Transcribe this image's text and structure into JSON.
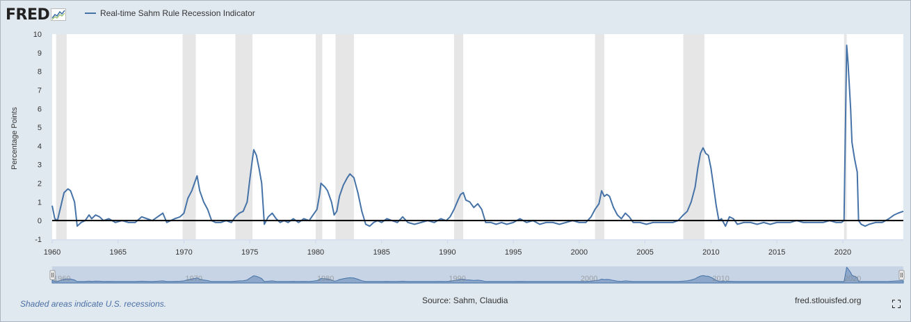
{
  "header": {
    "logo_text": "FRED",
    "logo_icon": "fred-chart-icon",
    "legend_label": "Real-time Sahm Rule Recession Indicator"
  },
  "footer": {
    "note": "Shaded areas indicate U.S. recessions.",
    "source": "Source: Sahm, Claudia",
    "url": "fred.stlouisfed.org",
    "fullscreen_icon": "fullscreen-icon"
  },
  "colors": {
    "series": "#4572a7",
    "recession_shade": "#e6e6e6",
    "background": "#e1e9f0",
    "plot_background": "#ffffff",
    "zero_line": "#000000",
    "navigator_fill": "#b2c3dc"
  },
  "chart_data": {
    "type": "line",
    "title": "Real-time Sahm Rule Recession Indicator",
    "xlabel": "",
    "ylabel": "Percentage Points",
    "xlim": [
      1960,
      2024.6
    ],
    "ylim": [
      -1,
      10
    ],
    "yticks": [
      -1,
      0,
      1,
      2,
      3,
      4,
      5,
      6,
      7,
      8,
      9,
      10
    ],
    "xticks": [
      1960,
      1965,
      1970,
      1975,
      1980,
      1985,
      1990,
      1995,
      2000,
      2005,
      2010,
      2015,
      2020
    ],
    "navigator_ticks": [
      "1960",
      "1970",
      "1980",
      "1990",
      "2000",
      "2010",
      "2020"
    ],
    "grid": false,
    "legend_position": "top-left",
    "reference_line": 0,
    "recessions": [
      [
        1960.3,
        1961.1
      ],
      [
        1969.9,
        1970.9
      ],
      [
        1973.9,
        1975.2
      ],
      [
        1980.0,
        1980.5
      ],
      [
        1981.5,
        1982.9
      ],
      [
        1990.5,
        1991.2
      ],
      [
        2001.2,
        2001.9
      ],
      [
        2007.9,
        2009.5
      ],
      [
        2020.1,
        2020.3
      ]
    ],
    "series": [
      {
        "name": "Real-time Sahm Rule Recession Indicator",
        "points": [
          [
            1960.0,
            0.8
          ],
          [
            1960.2,
            0.1
          ],
          [
            1960.4,
            0.0
          ],
          [
            1960.6,
            0.6
          ],
          [
            1960.9,
            1.5
          ],
          [
            1961.2,
            1.7
          ],
          [
            1961.4,
            1.6
          ],
          [
            1961.7,
            1.0
          ],
          [
            1961.9,
            -0.3
          ],
          [
            1962.2,
            -0.1
          ],
          [
            1962.5,
            0.0
          ],
          [
            1962.8,
            0.3
          ],
          [
            1963.0,
            0.1
          ],
          [
            1963.3,
            0.3
          ],
          [
            1963.6,
            0.2
          ],
          [
            1963.9,
            0.0
          ],
          [
            1964.3,
            0.1
          ],
          [
            1964.8,
            -0.1
          ],
          [
            1965.3,
            0.0
          ],
          [
            1965.8,
            -0.1
          ],
          [
            1966.3,
            -0.1
          ],
          [
            1966.8,
            0.2
          ],
          [
            1967.2,
            0.1
          ],
          [
            1967.6,
            0.0
          ],
          [
            1968.0,
            0.2
          ],
          [
            1968.4,
            0.4
          ],
          [
            1968.7,
            -0.1
          ],
          [
            1969.0,
            0.0
          ],
          [
            1969.3,
            0.1
          ],
          [
            1969.7,
            0.2
          ],
          [
            1970.0,
            0.4
          ],
          [
            1970.3,
            1.2
          ],
          [
            1970.6,
            1.6
          ],
          [
            1970.8,
            2.0
          ],
          [
            1971.0,
            2.4
          ],
          [
            1971.2,
            1.6
          ],
          [
            1971.5,
            1.0
          ],
          [
            1971.8,
            0.6
          ],
          [
            1972.1,
            0.0
          ],
          [
            1972.4,
            -0.1
          ],
          [
            1972.8,
            -0.1
          ],
          [
            1973.2,
            0.0
          ],
          [
            1973.6,
            -0.1
          ],
          [
            1973.9,
            0.2
          ],
          [
            1974.2,
            0.4
          ],
          [
            1974.5,
            0.5
          ],
          [
            1974.8,
            1.0
          ],
          [
            1975.0,
            2.2
          ],
          [
            1975.2,
            3.3
          ],
          [
            1975.3,
            3.8
          ],
          [
            1975.5,
            3.5
          ],
          [
            1975.7,
            2.8
          ],
          [
            1975.9,
            2.0
          ],
          [
            1976.1,
            -0.2
          ],
          [
            1976.4,
            0.2
          ],
          [
            1976.7,
            0.4
          ],
          [
            1977.0,
            0.1
          ],
          [
            1977.3,
            -0.1
          ],
          [
            1977.6,
            0.0
          ],
          [
            1977.9,
            -0.1
          ],
          [
            1978.3,
            0.1
          ],
          [
            1978.7,
            -0.1
          ],
          [
            1979.1,
            0.1
          ],
          [
            1979.5,
            0.0
          ],
          [
            1979.8,
            0.3
          ],
          [
            1980.1,
            0.6
          ],
          [
            1980.3,
            1.4
          ],
          [
            1980.4,
            2.0
          ],
          [
            1980.7,
            1.8
          ],
          [
            1980.9,
            1.6
          ],
          [
            1981.2,
            1.0
          ],
          [
            1981.4,
            0.3
          ],
          [
            1981.6,
            0.5
          ],
          [
            1981.8,
            1.3
          ],
          [
            1982.1,
            1.9
          ],
          [
            1982.4,
            2.3
          ],
          [
            1982.6,
            2.5
          ],
          [
            1982.9,
            2.3
          ],
          [
            1983.2,
            1.5
          ],
          [
            1983.5,
            0.5
          ],
          [
            1983.8,
            -0.2
          ],
          [
            1984.1,
            -0.3
          ],
          [
            1984.4,
            -0.1
          ],
          [
            1984.7,
            0.0
          ],
          [
            1985.0,
            -0.1
          ],
          [
            1985.4,
            0.1
          ],
          [
            1985.8,
            0.0
          ],
          [
            1986.2,
            -0.1
          ],
          [
            1986.6,
            0.2
          ],
          [
            1987.0,
            -0.1
          ],
          [
            1987.5,
            -0.2
          ],
          [
            1988.0,
            -0.1
          ],
          [
            1988.5,
            0.0
          ],
          [
            1989.0,
            -0.1
          ],
          [
            1989.5,
            0.1
          ],
          [
            1989.9,
            0.0
          ],
          [
            1990.2,
            0.2
          ],
          [
            1990.5,
            0.6
          ],
          [
            1990.8,
            1.1
          ],
          [
            1991.0,
            1.4
          ],
          [
            1991.2,
            1.5
          ],
          [
            1991.4,
            1.1
          ],
          [
            1991.7,
            1.0
          ],
          [
            1992.0,
            0.7
          ],
          [
            1992.3,
            0.9
          ],
          [
            1992.6,
            0.6
          ],
          [
            1992.9,
            -0.1
          ],
          [
            1993.3,
            -0.1
          ],
          [
            1993.7,
            -0.2
          ],
          [
            1994.1,
            -0.1
          ],
          [
            1994.5,
            -0.2
          ],
          [
            1995.0,
            -0.1
          ],
          [
            1995.5,
            0.1
          ],
          [
            1996.0,
            -0.1
          ],
          [
            1996.5,
            0.0
          ],
          [
            1997.0,
            -0.2
          ],
          [
            1997.5,
            -0.1
          ],
          [
            1998.0,
            -0.1
          ],
          [
            1998.5,
            -0.2
          ],
          [
            1999.0,
            -0.1
          ],
          [
            1999.5,
            0.0
          ],
          [
            2000.0,
            -0.1
          ],
          [
            2000.5,
            -0.1
          ],
          [
            2000.9,
            0.2
          ],
          [
            2001.2,
            0.6
          ],
          [
            2001.5,
            0.9
          ],
          [
            2001.7,
            1.6
          ],
          [
            2001.9,
            1.3
          ],
          [
            2002.1,
            1.4
          ],
          [
            2002.3,
            1.3
          ],
          [
            2002.6,
            0.7
          ],
          [
            2002.9,
            0.3
          ],
          [
            2003.2,
            0.1
          ],
          [
            2003.5,
            0.4
          ],
          [
            2003.8,
            0.2
          ],
          [
            2004.1,
            -0.1
          ],
          [
            2004.6,
            -0.1
          ],
          [
            2005.1,
            -0.2
          ],
          [
            2005.6,
            -0.1
          ],
          [
            2006.1,
            -0.1
          ],
          [
            2006.6,
            -0.1
          ],
          [
            2007.1,
            -0.1
          ],
          [
            2007.5,
            0.0
          ],
          [
            2007.9,
            0.3
          ],
          [
            2008.2,
            0.5
          ],
          [
            2008.5,
            1.0
          ],
          [
            2008.8,
            1.8
          ],
          [
            2009.0,
            2.8
          ],
          [
            2009.2,
            3.6
          ],
          [
            2009.4,
            3.9
          ],
          [
            2009.6,
            3.6
          ],
          [
            2009.8,
            3.5
          ],
          [
            2010.0,
            2.8
          ],
          [
            2010.2,
            1.8
          ],
          [
            2010.4,
            0.8
          ],
          [
            2010.6,
            0.0
          ],
          [
            2010.8,
            0.1
          ],
          [
            2011.1,
            -0.3
          ],
          [
            2011.4,
            0.2
          ],
          [
            2011.7,
            0.1
          ],
          [
            2012.0,
            -0.2
          ],
          [
            2012.5,
            -0.1
          ],
          [
            2013.0,
            -0.1
          ],
          [
            2013.5,
            -0.2
          ],
          [
            2014.0,
            -0.1
          ],
          [
            2014.5,
            -0.2
          ],
          [
            2015.0,
            -0.1
          ],
          [
            2015.5,
            -0.1
          ],
          [
            2016.0,
            -0.1
          ],
          [
            2016.5,
            0.0
          ],
          [
            2017.0,
            -0.1
          ],
          [
            2017.5,
            -0.1
          ],
          [
            2018.0,
            -0.1
          ],
          [
            2018.5,
            -0.1
          ],
          [
            2019.0,
            0.0
          ],
          [
            2019.5,
            -0.1
          ],
          [
            2019.9,
            -0.1
          ],
          [
            2020.1,
            0.0
          ],
          [
            2020.3,
            9.4
          ],
          [
            2020.4,
            8.5
          ],
          [
            2020.6,
            6.0
          ],
          [
            2020.7,
            4.2
          ],
          [
            2020.9,
            3.3
          ],
          [
            2021.1,
            2.6
          ],
          [
            2021.2,
            0.0
          ],
          [
            2021.4,
            -0.2
          ],
          [
            2021.7,
            -0.3
          ],
          [
            2022.0,
            -0.2
          ],
          [
            2022.5,
            -0.1
          ],
          [
            2023.0,
            -0.1
          ],
          [
            2023.5,
            0.1
          ],
          [
            2023.9,
            0.3
          ],
          [
            2024.2,
            0.4
          ],
          [
            2024.6,
            0.5
          ]
        ]
      }
    ]
  }
}
